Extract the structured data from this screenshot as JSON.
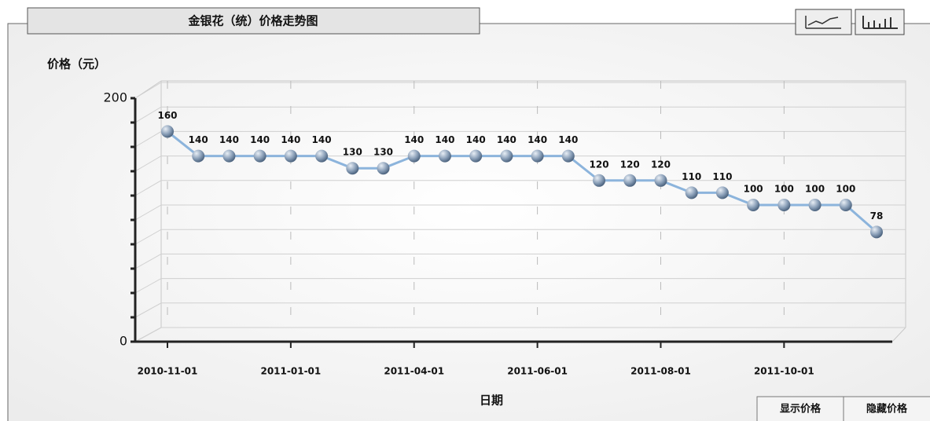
{
  "title": "金银花（统）价格走势图",
  "buttons": [
    "显示价格",
    "隐藏价格"
  ],
  "chart_data": {
    "type": "line",
    "ylabel": "价格（元）",
    "xlabel": "日期",
    "categories": [
      "2010-11-01",
      null,
      null,
      null,
      "2011-01-01",
      null,
      null,
      null,
      "2011-04-01",
      null,
      null,
      null,
      "2011-06-01",
      null,
      null,
      null,
      "2011-08-01",
      null,
      null,
      null,
      "2011-10-01",
      null,
      null,
      null
    ],
    "series": [
      {
        "color": "#8cb4dc",
        "values": [
          160,
          140,
          140,
          140,
          140,
          140,
          130,
          130,
          140,
          140,
          140,
          140,
          140,
          140,
          120,
          120,
          120,
          110,
          110,
          100,
          100,
          100,
          100,
          78
        ]
      }
    ],
    "ylim": [
      0,
      200
    ],
    "yticks": [
      0,
      200
    ],
    "minor_yticks": [
      20,
      40,
      60,
      80,
      100,
      120,
      140,
      160,
      180
    ],
    "grid": true
  }
}
